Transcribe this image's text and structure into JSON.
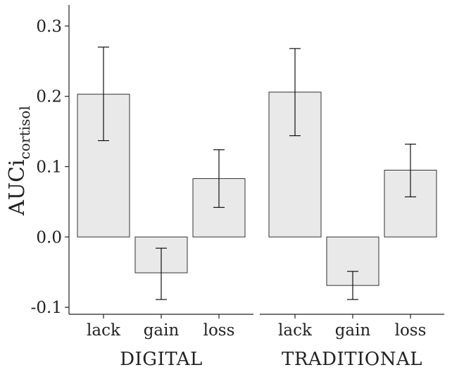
{
  "chart_data": {
    "type": "bar",
    "ylabel": "AUCi",
    "ylabel_subscript": "cortisol",
    "ylim": [
      -0.11,
      0.33
    ],
    "yticks": [
      -0.1,
      0.0,
      0.1,
      0.2,
      0.3
    ],
    "ytick_labels": [
      "-0.1",
      "0.0",
      "0.1",
      "0.2",
      "0.3"
    ],
    "categories": [
      "lack",
      "gain",
      "loss"
    ],
    "panels": [
      {
        "name": "DIGITAL",
        "values": [
          0.203,
          -0.051,
          0.083
        ],
        "error_low": [
          0.137,
          -0.089,
          0.042
        ],
        "error_high": [
          0.27,
          -0.016,
          0.124
        ]
      },
      {
        "name": "TRADITIONAL",
        "values": [
          0.206,
          -0.069,
          0.095
        ],
        "error_low": [
          0.144,
          -0.089,
          0.057
        ],
        "error_high": [
          0.268,
          -0.049,
          0.132
        ]
      }
    ],
    "grid": false,
    "legend": "none"
  }
}
